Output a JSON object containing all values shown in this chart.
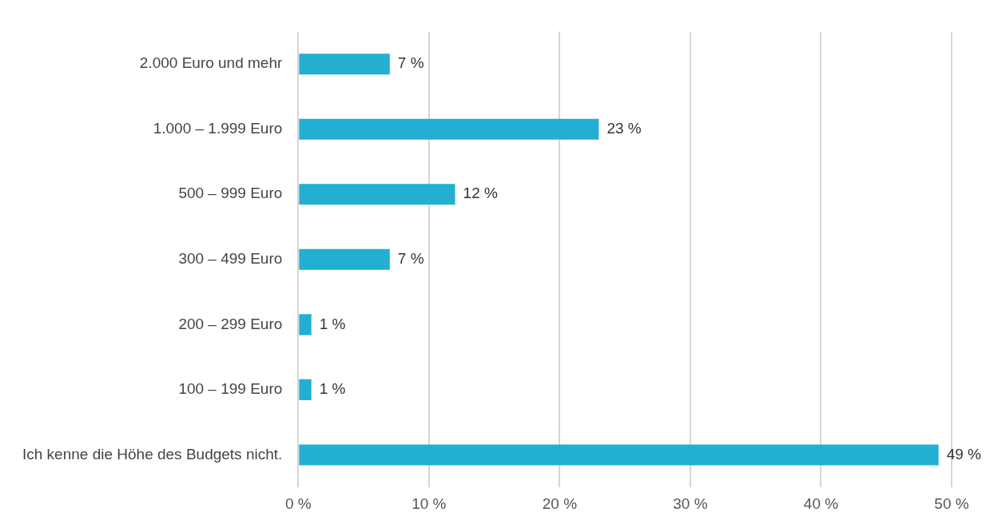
{
  "chart_data": {
    "type": "bar",
    "orientation": "horizontal",
    "categories": [
      "2.000 Euro und mehr",
      "1.000 – 1.999 Euro",
      "500 – 999 Euro",
      "300 – 499 Euro",
      "200 – 299 Euro",
      "100 – 199 Euro",
      "Ich kenne die Höhe des Budgets nicht."
    ],
    "values": [
      7,
      23,
      12,
      7,
      1,
      1,
      49
    ],
    "value_labels": [
      "7 %",
      "23 %",
      "12 %",
      "7 %",
      "1 %",
      "1 %",
      "49 %"
    ],
    "color": "#22afd2",
    "xlim": [
      0,
      50
    ],
    "xticks": [
      {
        "value": 0,
        "label": "0 %"
      },
      {
        "value": 10,
        "label": "10 %"
      },
      {
        "value": 20,
        "label": "20 %"
      },
      {
        "value": 30,
        "label": "30 %"
      },
      {
        "value": 40,
        "label": "40 %"
      },
      {
        "value": 50,
        "label": "50 %"
      }
    ],
    "grid": "x",
    "legend": false
  }
}
